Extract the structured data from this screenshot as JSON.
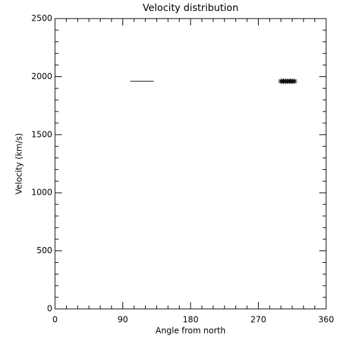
{
  "chart_data": {
    "type": "line",
    "title": "Velocity distribution",
    "x_label": "Angle from north",
    "y_label": "Velocity (km/s)",
    "xlim": [
      0,
      360
    ],
    "xticks": [
      0,
      90,
      180,
      270,
      360
    ],
    "xminor": 6,
    "ylim": [
      0,
      2500
    ],
    "yticks": [
      0,
      500,
      1000,
      1500,
      2000,
      2500
    ],
    "yminor": 5,
    "color": "#000000",
    "series": [
      {
        "type": "line",
        "x": [
          100,
          131
        ],
        "values": [
          1960,
          1960
        ]
      },
      {
        "type": "asterisk",
        "x": [
          300,
          303,
          306,
          309,
          312,
          315,
          318
        ],
        "values": [
          1960,
          1960,
          1960,
          1960,
          1960,
          1960,
          1960
        ]
      }
    ]
  }
}
